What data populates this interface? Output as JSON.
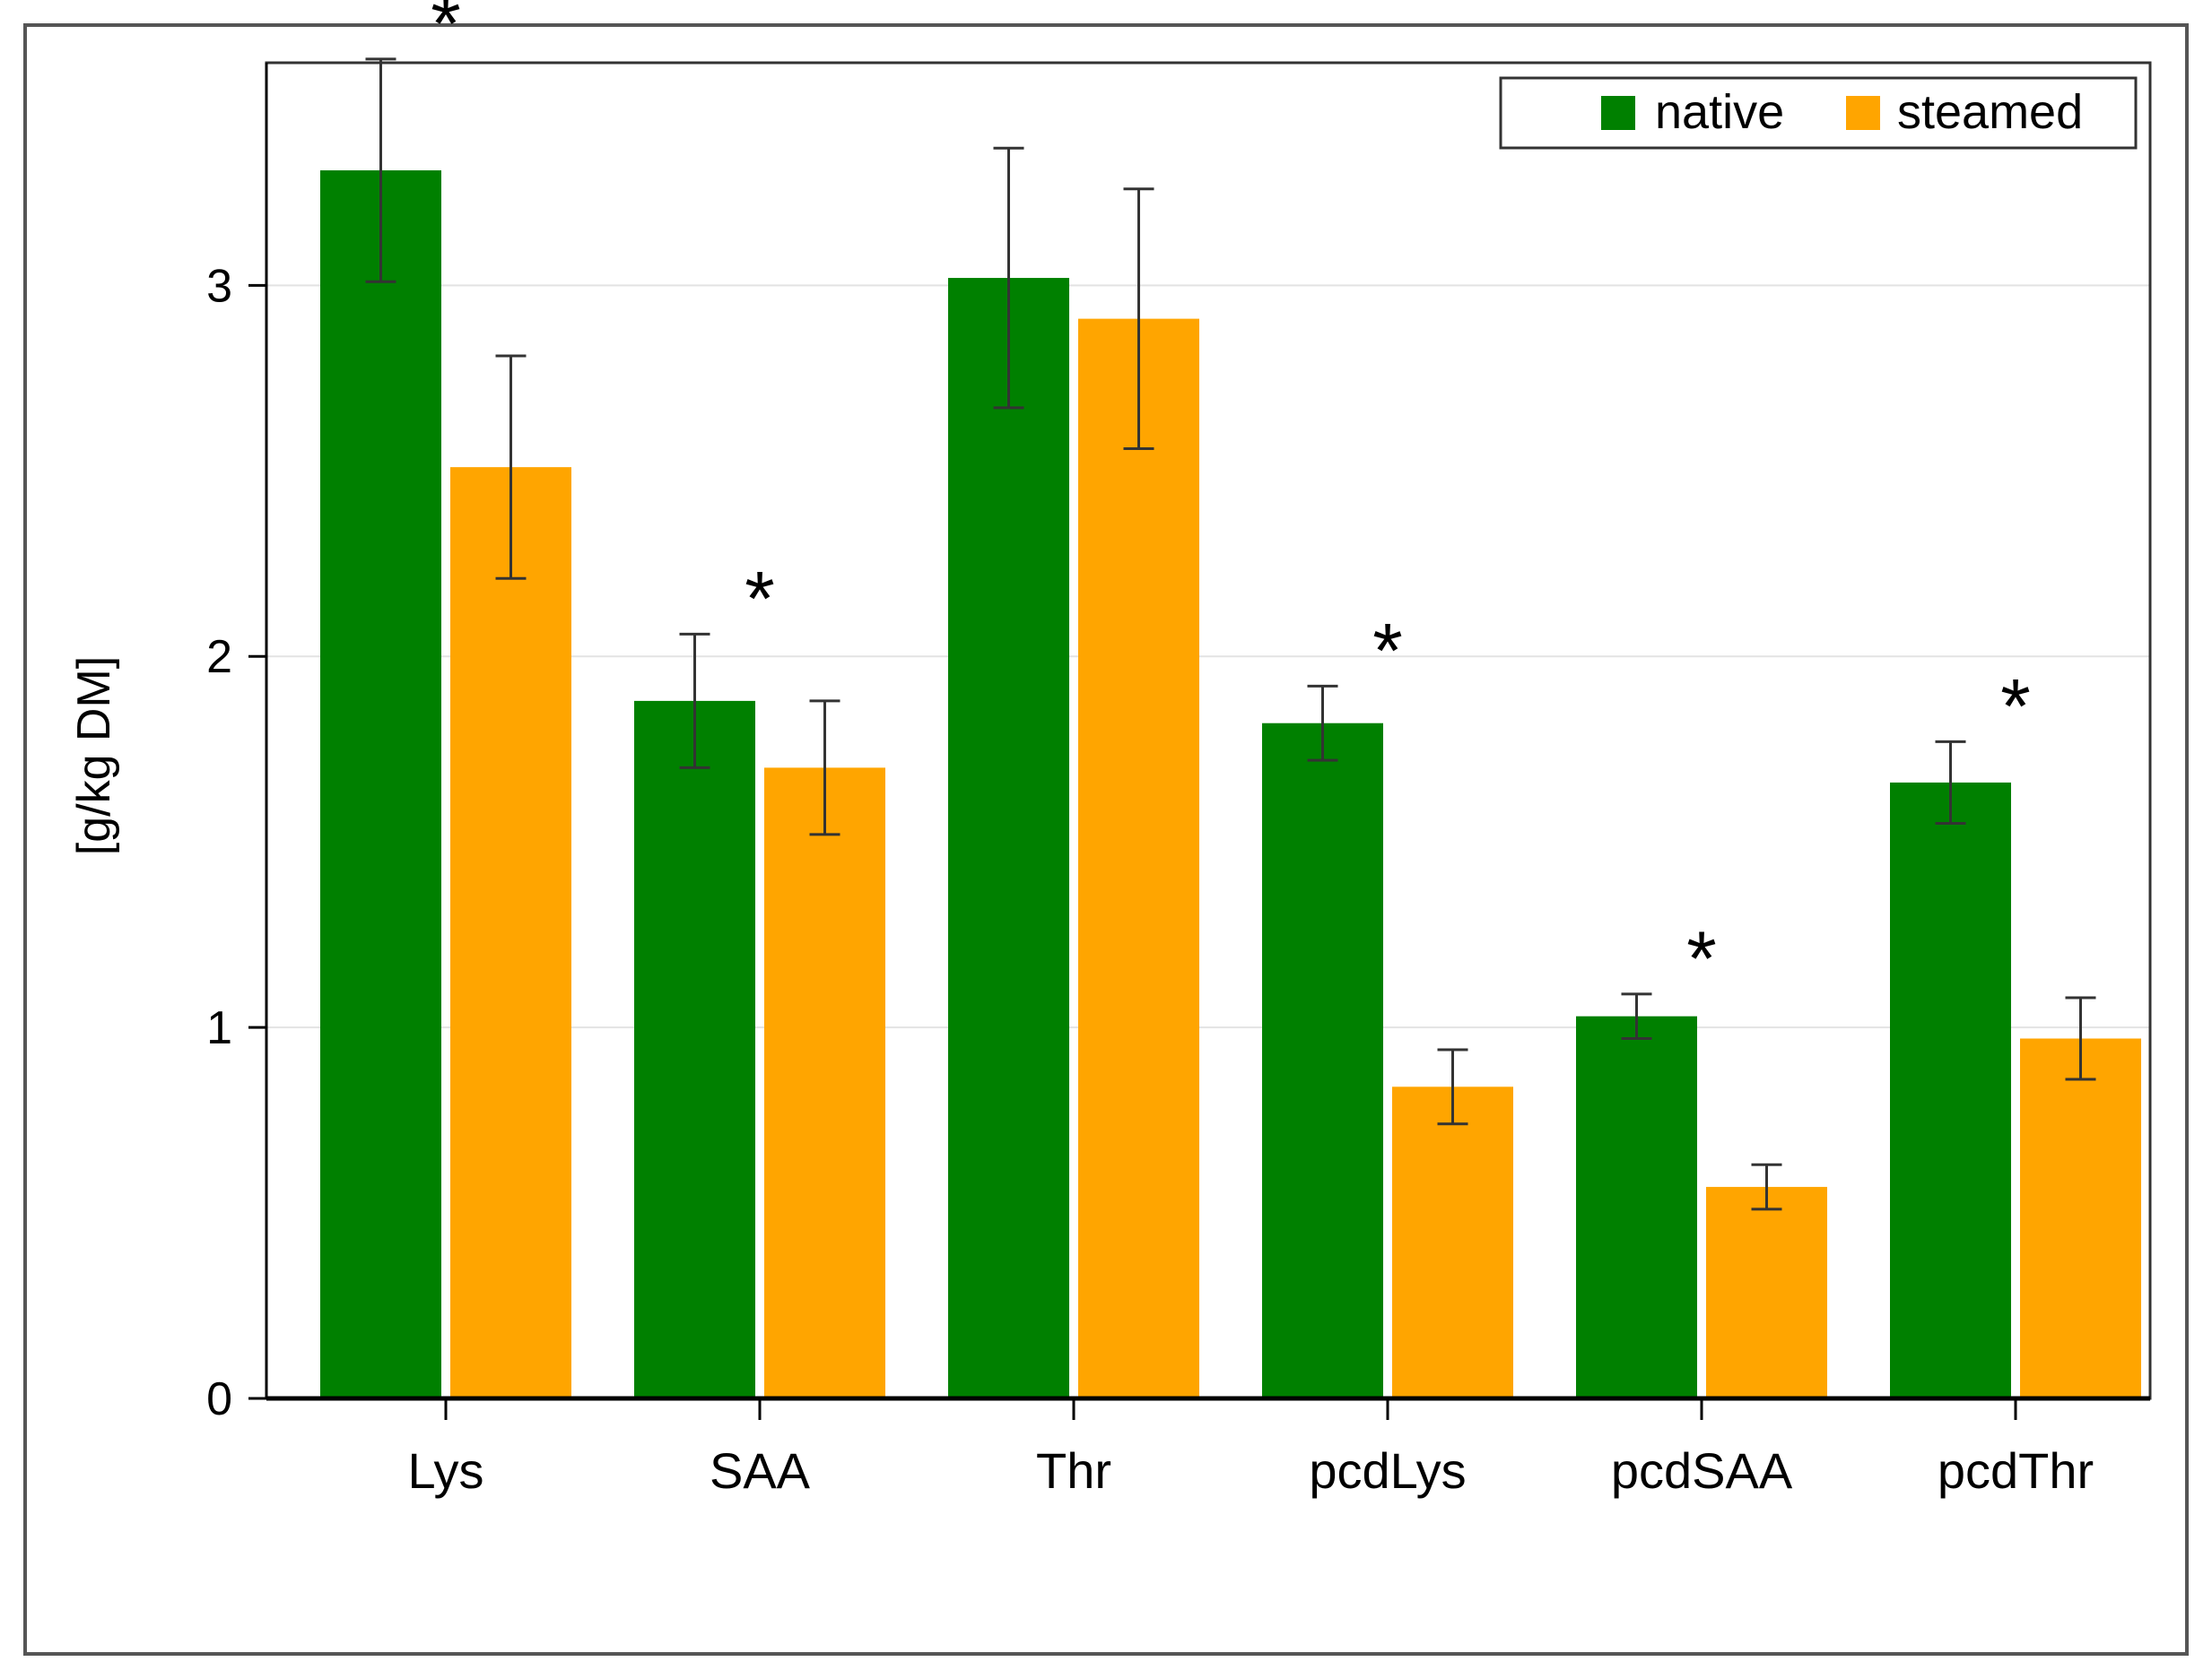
{
  "chart_data": {
    "type": "bar",
    "title": "",
    "xlabel": "",
    "ylabel": "[g/kg DM]",
    "ylim": [
      0,
      3.6
    ],
    "yticks": [
      0,
      1,
      2,
      3
    ],
    "grid": true,
    "legend_position": "top-right",
    "categories": [
      "Lys",
      "SAA",
      "Thr",
      "pcdLys",
      "pcdSAA",
      "pcdThr"
    ],
    "series": [
      {
        "name": "native",
        "color": "#008000",
        "values": [
          3.31,
          1.88,
          3.02,
          1.82,
          1.03,
          1.66
        ],
        "error": [
          0.3,
          0.18,
          0.35,
          0.1,
          0.06,
          0.11
        ]
      },
      {
        "name": "steamed",
        "color": "#FFA500",
        "values": [
          2.51,
          1.7,
          2.91,
          0.84,
          0.57,
          0.97
        ],
        "error": [
          0.3,
          0.18,
          0.35,
          0.1,
          0.06,
          0.11
        ]
      }
    ],
    "significance_marker": "*",
    "significant_categories": [
      "Lys",
      "SAA",
      "pcdLys",
      "pcdSAA",
      "pcdThr"
    ]
  }
}
